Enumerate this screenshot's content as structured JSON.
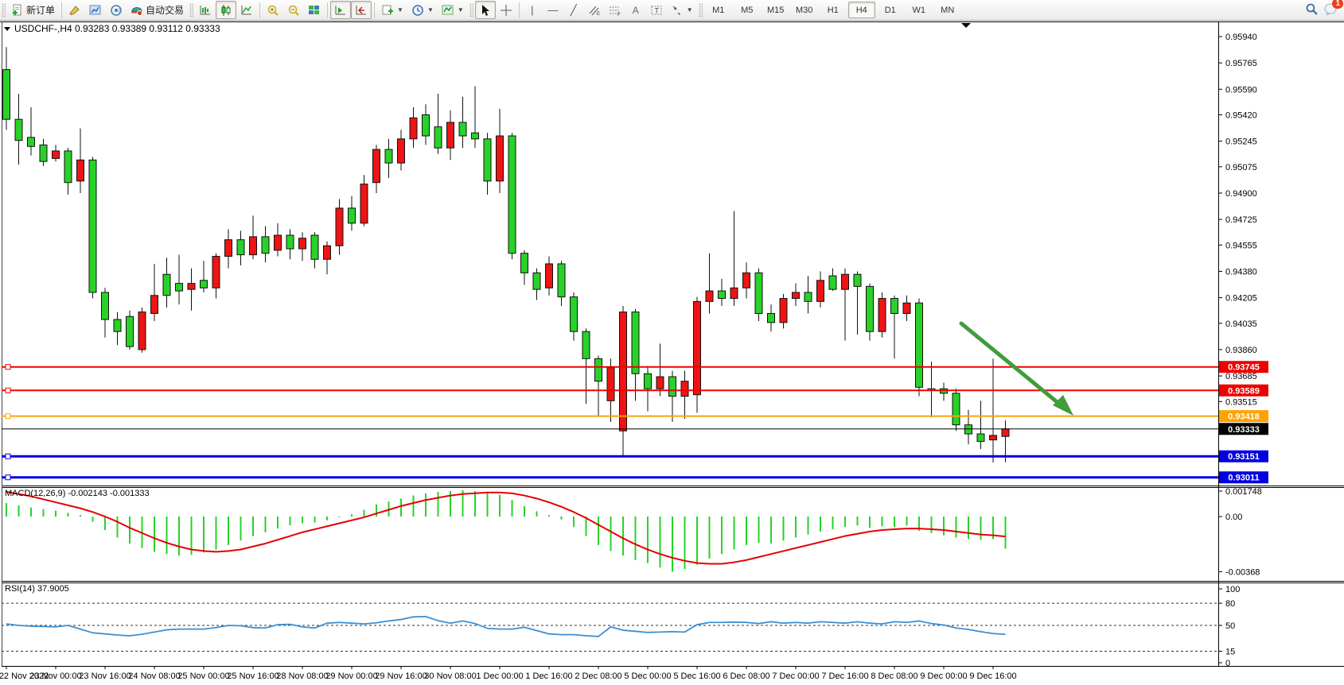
{
  "toolbar": {
    "new_order_label": "新订单",
    "autotrading_label": "自动交易",
    "timeframes": [
      {
        "label": "M1",
        "active": false
      },
      {
        "label": "M5",
        "active": false
      },
      {
        "label": "M15",
        "active": false
      },
      {
        "label": "M30",
        "active": false
      },
      {
        "label": "H1",
        "active": false
      },
      {
        "label": "H4",
        "active": true
      },
      {
        "label": "D1",
        "active": false
      },
      {
        "label": "W1",
        "active": false
      },
      {
        "label": "MN",
        "active": false
      }
    ],
    "notification_count": "1"
  },
  "chart": {
    "title": {
      "symbol": "USDCHF-,H4",
      "ohlc": "0.93283 0.93389 0.93112 0.93333"
    },
    "price_axis_ticks": [
      "0.95940",
      "0.95765",
      "0.95590",
      "0.95420",
      "0.95245",
      "0.95075",
      "0.94900",
      "0.94725",
      "0.94555",
      "0.94380",
      "0.94205",
      "0.94035",
      "0.93860",
      "0.93685",
      "0.93515"
    ],
    "hlines": [
      {
        "price": 0.93745,
        "label": "0.93745",
        "color": "#ee0000",
        "width": 2
      },
      {
        "price": 0.93589,
        "label": "0.93589",
        "color": "#ee0000",
        "width": 2
      },
      {
        "price": 0.93418,
        "label": "0.93418",
        "color": "#ffa200",
        "width": 2
      },
      {
        "price": 0.93333,
        "label": "0.93333",
        "color": "#000000",
        "width": 1
      },
      {
        "price": 0.93151,
        "label": "0.93151",
        "color": "#0000e0",
        "width": 3
      },
      {
        "price": 0.93011,
        "label": "0.93011",
        "color": "#0000e0",
        "width": 3
      }
    ],
    "macd_label": "MACD(12,26,9) -0.002143 -0.001333",
    "rsi_label": "RSI(14) 37.9005",
    "colors": {
      "up": "#ee1414",
      "down": "#28d228",
      "wick": "#111111",
      "macd_hist": "#28d228",
      "macd_signal": "#e60000",
      "rsi_line": "#3b8fd4",
      "arrow": "#3f9d3b"
    }
  },
  "chart_data": [
    {
      "type": "candlestick",
      "title": "USDCHF-,H4",
      "symbol": "USDCHF-",
      "timeframe": "H4",
      "last_ohlc": {
        "open": 0.93283,
        "high": 0.93389,
        "low": 0.93112,
        "close": 0.93333
      },
      "ylim": [
        0.92962,
        0.9601
      ],
      "x_labels": [
        "22 Nov 2022",
        "23 Nov 00:00",
        "23 Nov 16:00",
        "24 Nov 08:00",
        "25 Nov 00:00",
        "25 Nov 16:00",
        "28 Nov 08:00",
        "29 Nov 00:00",
        "29 Nov 16:00",
        "30 Nov 08:00",
        "1 Dec 00:00",
        "1 Dec 16:00",
        "2 Dec 08:00",
        "5 Dec 00:00",
        "5 Dec 16:00",
        "6 Dec 08:00",
        "7 Dec 00:00",
        "7 Dec 16:00",
        "8 Dec 08:00",
        "9 Dec 00:00",
        "9 Dec 16:00"
      ],
      "candles_ohlc": [
        [
          0.9572,
          0.9587,
          0.9532,
          0.9539
        ],
        [
          0.9539,
          0.9556,
          0.9509,
          0.9525
        ],
        [
          0.9527,
          0.9547,
          0.9515,
          0.9521
        ],
        [
          0.9522,
          0.9526,
          0.9508,
          0.9511
        ],
        [
          0.9513,
          0.9522,
          0.9511,
          0.9518
        ],
        [
          0.9518,
          0.952,
          0.9489,
          0.9497
        ],
        [
          0.9498,
          0.9533,
          0.949,
          0.9512
        ],
        [
          0.9512,
          0.9514,
          0.942,
          0.9424
        ],
        [
          0.9424,
          0.9427,
          0.9394,
          0.9406
        ],
        [
          0.9406,
          0.9411,
          0.9389,
          0.9398
        ],
        [
          0.9408,
          0.9412,
          0.9386,
          0.9388
        ],
        [
          0.9386,
          0.9414,
          0.9384,
          0.9411
        ],
        [
          0.941,
          0.9443,
          0.9405,
          0.9422
        ],
        [
          0.9436,
          0.9447,
          0.9414,
          0.9422
        ],
        [
          0.943,
          0.9449,
          0.9416,
          0.9425
        ],
        [
          0.9426,
          0.944,
          0.9412,
          0.943
        ],
        [
          0.9432,
          0.9445,
          0.9424,
          0.9427
        ],
        [
          0.9427,
          0.945,
          0.942,
          0.9448
        ],
        [
          0.9448,
          0.9466,
          0.944,
          0.9459
        ],
        [
          0.9459,
          0.9465,
          0.9442,
          0.9449
        ],
        [
          0.9449,
          0.9475,
          0.9446,
          0.9461
        ],
        [
          0.9461,
          0.9468,
          0.9444,
          0.945
        ],
        [
          0.9452,
          0.947,
          0.9448,
          0.9462
        ],
        [
          0.9462,
          0.9466,
          0.9446,
          0.9453
        ],
        [
          0.9453,
          0.9464,
          0.9445,
          0.946
        ],
        [
          0.9462,
          0.9464,
          0.944,
          0.9446
        ],
        [
          0.9446,
          0.9458,
          0.9436,
          0.9455
        ],
        [
          0.9455,
          0.9486,
          0.9449,
          0.948
        ],
        [
          0.948,
          0.9488,
          0.9465,
          0.947
        ],
        [
          0.947,
          0.9502,
          0.9468,
          0.9496
        ],
        [
          0.9497,
          0.9522,
          0.949,
          0.9519
        ],
        [
          0.9519,
          0.9526,
          0.95,
          0.951
        ],
        [
          0.951,
          0.9532,
          0.9505,
          0.9526
        ],
        [
          0.9526,
          0.9547,
          0.952,
          0.954
        ],
        [
          0.9542,
          0.9549,
          0.9522,
          0.9528
        ],
        [
          0.9534,
          0.9556,
          0.9516,
          0.952
        ],
        [
          0.952,
          0.9545,
          0.9512,
          0.9537
        ],
        [
          0.9537,
          0.9554,
          0.952,
          0.9528
        ],
        [
          0.953,
          0.9561,
          0.952,
          0.9526
        ],
        [
          0.9526,
          0.953,
          0.9489,
          0.9498
        ],
        [
          0.9498,
          0.9546,
          0.949,
          0.9528
        ],
        [
          0.9528,
          0.953,
          0.9446,
          0.945
        ],
        [
          0.945,
          0.9452,
          0.9429,
          0.9437
        ],
        [
          0.9437,
          0.944,
          0.9419,
          0.9426
        ],
        [
          0.9427,
          0.9448,
          0.9422,
          0.9443
        ],
        [
          0.9443,
          0.9445,
          0.9415,
          0.9421
        ],
        [
          0.9421,
          0.9424,
          0.9392,
          0.9398
        ],
        [
          0.9398,
          0.94,
          0.935,
          0.938
        ],
        [
          0.938,
          0.9382,
          0.9342,
          0.9365
        ],
        [
          0.9352,
          0.938,
          0.9338,
          0.9374
        ],
        [
          0.9332,
          0.9415,
          0.9315,
          0.9411
        ],
        [
          0.9411,
          0.9413,
          0.9352,
          0.937
        ],
        [
          0.937,
          0.9375,
          0.9345,
          0.936
        ],
        [
          0.936,
          0.939,
          0.9355,
          0.9368
        ],
        [
          0.9368,
          0.9372,
          0.9338,
          0.9355
        ],
        [
          0.9355,
          0.9372,
          0.934,
          0.9365
        ],
        [
          0.9356,
          0.9421,
          0.9344,
          0.9418
        ],
        [
          0.9418,
          0.945,
          0.941,
          0.9425
        ],
        [
          0.9425,
          0.9433,
          0.9415,
          0.942
        ],
        [
          0.942,
          0.9478,
          0.9415,
          0.9427
        ],
        [
          0.9427,
          0.9444,
          0.942,
          0.9437
        ],
        [
          0.9437,
          0.944,
          0.9405,
          0.941
        ],
        [
          0.941,
          0.9416,
          0.9398,
          0.9404
        ],
        [
          0.9404,
          0.9423,
          0.94,
          0.942
        ],
        [
          0.942,
          0.943,
          0.9415,
          0.9424
        ],
        [
          0.9424,
          0.9435,
          0.941,
          0.9418
        ],
        [
          0.9418,
          0.9438,
          0.9414,
          0.9432
        ],
        [
          0.9435,
          0.944,
          0.9425,
          0.9426
        ],
        [
          0.9426,
          0.944,
          0.9392,
          0.9436
        ],
        [
          0.9436,
          0.9438,
          0.9396,
          0.9428
        ],
        [
          0.9428,
          0.943,
          0.9392,
          0.9398
        ],
        [
          0.9398,
          0.9424,
          0.9394,
          0.942
        ],
        [
          0.942,
          0.9422,
          0.938,
          0.941
        ],
        [
          0.941,
          0.9422,
          0.9405,
          0.9417
        ],
        [
          0.9417,
          0.942,
          0.9355,
          0.9361
        ],
        [
          0.936,
          0.9378,
          0.9341,
          0.9359
        ],
        [
          0.936,
          0.9364,
          0.9352,
          0.9357
        ],
        [
          0.9357,
          0.936,
          0.9332,
          0.9336
        ],
        [
          0.9336,
          0.9346,
          0.9323,
          0.933
        ],
        [
          0.933,
          0.9352,
          0.932,
          0.9325
        ],
        [
          0.9326,
          0.938,
          0.9311,
          0.9329
        ],
        [
          0.93283,
          0.93389,
          0.93112,
          0.93333
        ]
      ],
      "horizontal_levels": [
        0.93745,
        0.93589,
        0.93418,
        0.93333,
        0.93151,
        0.93011
      ],
      "annotation_arrow": {
        "from_price": 0.9393,
        "to_price": 0.9343,
        "note": "green down-trend arrow over 8-9 Dec decline"
      }
    },
    {
      "type": "bar",
      "name": "MACD(12,26,9)",
      "current_values": [
        -0.002143,
        -0.001333
      ],
      "y_ticks": [
        {
          "v": 1.748,
          "label": "0.001748"
        },
        {
          "v": 0,
          "label": "0.00"
        },
        {
          "v": -3.68,
          "label": "-0.00368"
        }
      ],
      "unit": "0.001",
      "histogram": [
        0.9,
        0.75,
        0.6,
        0.5,
        0.4,
        0.25,
        0.1,
        -0.35,
        -0.9,
        -1.4,
        -1.8,
        -2.1,
        -2.35,
        -2.5,
        -2.6,
        -2.55,
        -2.4,
        -2.2,
        -1.9,
        -1.6,
        -1.3,
        -1.05,
        -0.8,
        -0.6,
        -0.45,
        -0.4,
        -0.25,
        -0.05,
        0.15,
        0.45,
        0.8,
        1.0,
        1.2,
        1.4,
        1.55,
        1.65,
        1.7,
        1.748,
        1.7,
        1.6,
        1.45,
        1.1,
        0.7,
        0.35,
        0.1,
        -0.2,
        -0.7,
        -1.3,
        -1.9,
        -2.3,
        -2.6,
        -2.9,
        -3.1,
        -3.4,
        -3.68,
        -3.5,
        -3.2,
        -2.8,
        -2.5,
        -2.2,
        -1.9,
        -1.75,
        -1.8,
        -1.6,
        -1.4,
        -1.2,
        -1.0,
        -0.85,
        -0.7,
        -0.6,
        -0.75,
        -0.65,
        -0.7,
        -0.6,
        -0.95,
        -1.1,
        -1.25,
        -1.4,
        -1.5,
        -1.55,
        -1.5,
        -2.143
      ],
      "signal": [
        1.65,
        1.5,
        1.35,
        1.15,
        0.95,
        0.75,
        0.55,
        0.3,
        0.0,
        -0.35,
        -0.75,
        -1.1,
        -1.45,
        -1.75,
        -2.0,
        -2.2,
        -2.3,
        -2.35,
        -2.3,
        -2.2,
        -2.0,
        -1.8,
        -1.55,
        -1.3,
        -1.05,
        -0.85,
        -0.65,
        -0.45,
        -0.25,
        -0.05,
        0.2,
        0.45,
        0.7,
        0.9,
        1.1,
        1.25,
        1.4,
        1.5,
        1.55,
        1.6,
        1.6,
        1.55,
        1.4,
        1.2,
        0.95,
        0.65,
        0.3,
        -0.1,
        -0.55,
        -1.0,
        -1.45,
        -1.85,
        -2.2,
        -2.5,
        -2.75,
        -2.95,
        -3.1,
        -3.15,
        -3.15,
        -3.05,
        -2.9,
        -2.7,
        -2.5,
        -2.3,
        -2.1,
        -1.9,
        -1.7,
        -1.5,
        -1.3,
        -1.15,
        -1.0,
        -0.9,
        -0.85,
        -0.8,
        -0.8,
        -0.85,
        -0.9,
        -1.0,
        -1.1,
        -1.2,
        -1.25,
        -1.333
      ]
    },
    {
      "type": "line",
      "name": "RSI(14)",
      "current_value": 37.9005,
      "ylim": [
        0,
        100
      ],
      "y_ticks": [
        {
          "v": 100,
          "label": "100"
        },
        {
          "v": 80,
          "label": "80"
        },
        {
          "v": 50,
          "label": "50"
        },
        {
          "v": 15,
          "label": "15"
        },
        {
          "v": 0,
          "label": "0"
        }
      ],
      "dashed_levels": [
        80,
        50,
        15
      ],
      "values": [
        52,
        50,
        49,
        48.5,
        48,
        50,
        45,
        40,
        38.5,
        37,
        36,
        38,
        41,
        44,
        45,
        45,
        45,
        47,
        50,
        49.5,
        47,
        46.5,
        51,
        51.5,
        48,
        46.5,
        53,
        54,
        53,
        52,
        53.5,
        56,
        58,
        61.5,
        62,
        56.5,
        53,
        56,
        52.5,
        46,
        45,
        45,
        47.5,
        43,
        38.5,
        37.5,
        37.5,
        36,
        35,
        48,
        43.5,
        42,
        40.5,
        41,
        41.5,
        41,
        51,
        54,
        54,
        54.5,
        54,
        52.5,
        55,
        53,
        54,
        53,
        55,
        54,
        53,
        55,
        53,
        52,
        55,
        54,
        56,
        52.5,
        50.5,
        46.5,
        44.5,
        41.5,
        39,
        37.9
      ]
    }
  ]
}
